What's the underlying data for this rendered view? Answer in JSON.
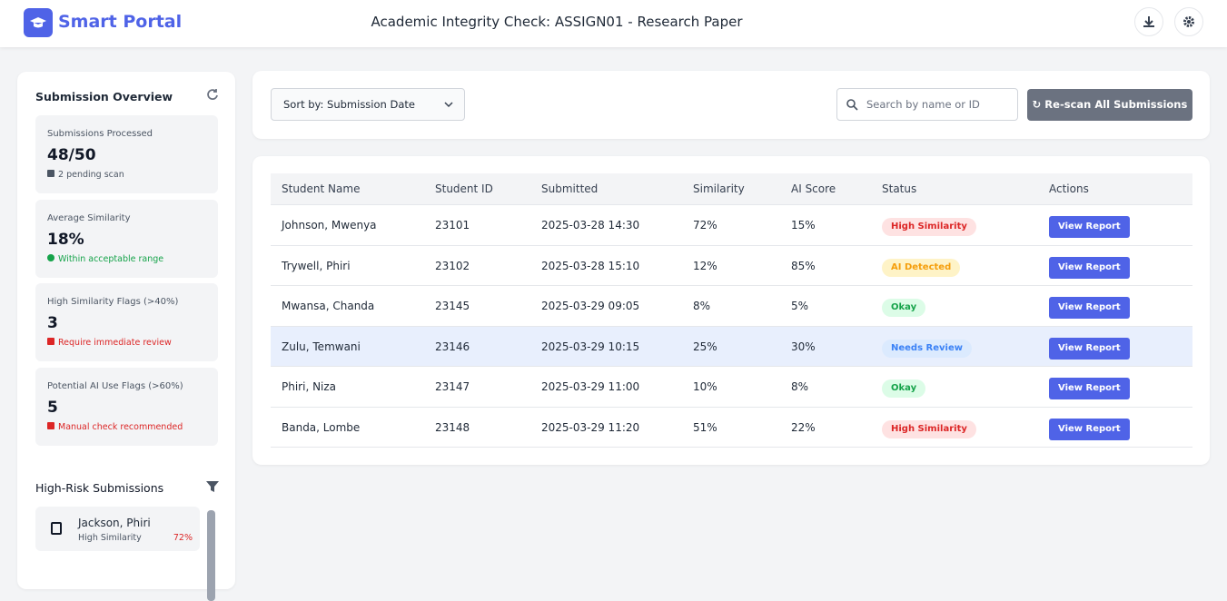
{
  "header": {
    "brand": "Smart Portal",
    "title": "Academic Integrity Check: ASSIGN01 - Research Paper"
  },
  "sidebar": {
    "overview_title": "Submission Overview",
    "stats": [
      {
        "label": "Submissions Processed",
        "value": "48/50",
        "note": "2 pending scan",
        "note_color": "#4b5563"
      },
      {
        "label": "Average Similarity",
        "value": "18%",
        "note": "Within acceptable range",
        "note_color": "#16a34a"
      },
      {
        "label": "High Similarity Flags (>40%)",
        "value": "3",
        "note": "Require immediate review",
        "note_color": "#dc2626"
      },
      {
        "label": "Potential AI Use Flags (>60%)",
        "value": "5",
        "note": "Manual check recommended",
        "note_color": "#dc2626"
      }
    ],
    "risk_title": "High-Risk Submissions",
    "risk_items": [
      {
        "name": "Jackson, Phiri",
        "type": "High Similarity",
        "score": "72%"
      }
    ]
  },
  "toolbar": {
    "sort": "Sort by: Submission Date",
    "search_placeholder": "Search by name or ID",
    "rescan": "Re-scan All Submissions"
  },
  "table": {
    "columns": [
      "Student Name",
      "Student ID",
      "Submitted",
      "Similarity",
      "AI Score",
      "Status",
      "Actions"
    ],
    "action": "View Report",
    "rows": [
      {
        "name": "Johnson, Mwenya",
        "id": "23101",
        "submitted": "2025-03-28 14:30",
        "similarity": "72%",
        "ai_score": "15%",
        "status": "High Similarity",
        "status_color": "#dc2626",
        "status_bg": "#fee2e2",
        "highlighted": false
      },
      {
        "name": "Trywell, Phiri",
        "id": "23102",
        "submitted": "2025-03-28 15:10",
        "similarity": "12%",
        "ai_score": "85%",
        "status": "AI Detected",
        "status_color": "#f59e0b",
        "status_bg": "#fef3c7",
        "highlighted": false
      },
      {
        "name": "Mwansa, Chanda",
        "id": "23145",
        "submitted": "2025-03-29 09:05",
        "similarity": "8%",
        "ai_score": "5%",
        "status": "Okay",
        "status_color": "#16a34a",
        "status_bg": "#dcfce7",
        "highlighted": false
      },
      {
        "name": "Zulu, Temwani",
        "id": "23146",
        "submitted": "2025-03-29 10:15",
        "similarity": "25%",
        "ai_score": "30%",
        "status": "Needs Review",
        "status_color": "#3b82f6",
        "status_bg": "#dbeafe",
        "highlighted": true
      },
      {
        "name": "Phiri, Niza",
        "id": "23147",
        "submitted": "2025-03-29 11:00",
        "similarity": "10%",
        "ai_score": "8%",
        "status": "Okay",
        "status_color": "#16a34a",
        "status_bg": "#dcfce7",
        "highlighted": false
      },
      {
        "name": "Banda, Lombe",
        "id": "23148",
        "submitted": "2025-03-29 11:20",
        "similarity": "51%",
        "ai_score": "22%",
        "status": "High Similarity",
        "status_color": "#dc2626",
        "status_bg": "#fee2e2",
        "highlighted": false
      }
    ]
  }
}
